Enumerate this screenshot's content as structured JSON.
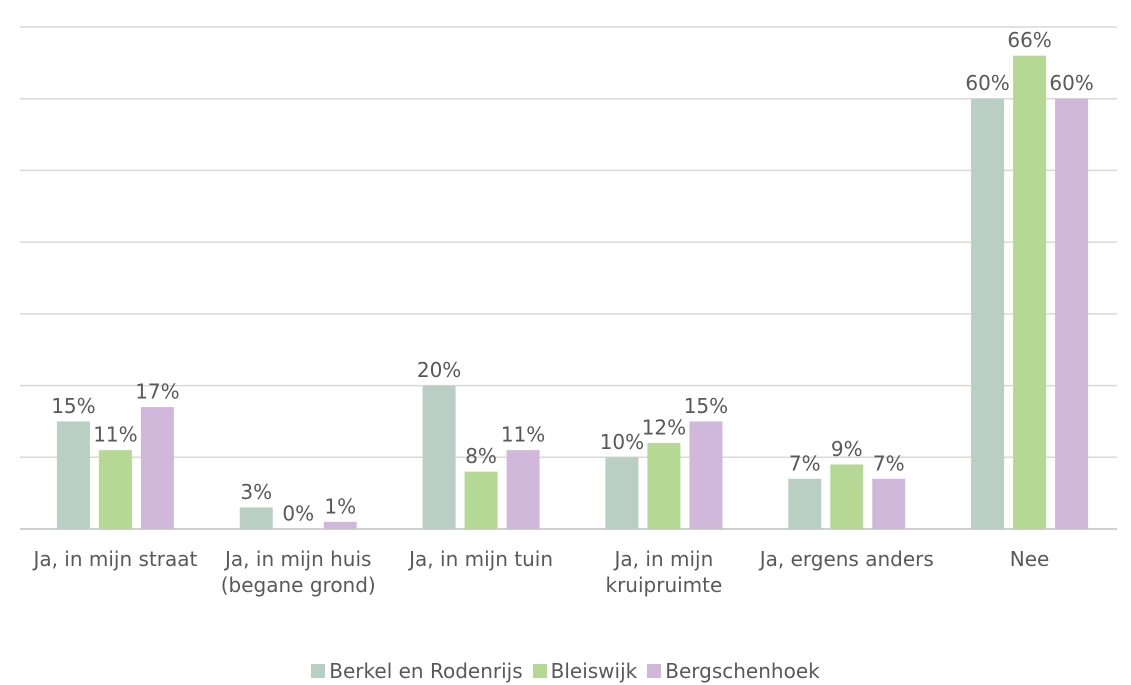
{
  "chart_data": {
    "type": "bar",
    "categories": [
      "Ja, in mijn straat",
      "Ja, in mijn huis (begane grond)",
      "Ja, in mijn tuin",
      "Ja, in mijn kruipruimte",
      "Ja, ergens anders",
      "Nee"
    ],
    "series": [
      {
        "name": "Berkel en Rodenrijs",
        "color": "#b9cfc4",
        "values": [
          15,
          3,
          20,
          10,
          7,
          60
        ],
        "value_labels": [
          "15%",
          "3%",
          "20%",
          "10%",
          "7%",
          "60%"
        ]
      },
      {
        "name": "Bleiswijk",
        "color": "#b5d995",
        "values": [
          11,
          0,
          8,
          12,
          9,
          66
        ],
        "value_labels": [
          "11%",
          "0%",
          "8%",
          "12%",
          "9%",
          "66%"
        ]
      },
      {
        "name": "Bergschenhoek",
        "color": "#d0b8da",
        "values": [
          17,
          1,
          11,
          15,
          7,
          60
        ],
        "value_labels": [
          "17%",
          "1%",
          "11%",
          "15%",
          "7%",
          "60%"
        ]
      }
    ],
    "ylim": [
      0,
      70
    ],
    "yticks": [
      0,
      10,
      20,
      30,
      40,
      50,
      60,
      70
    ],
    "grid": true,
    "legend": "bottom"
  }
}
